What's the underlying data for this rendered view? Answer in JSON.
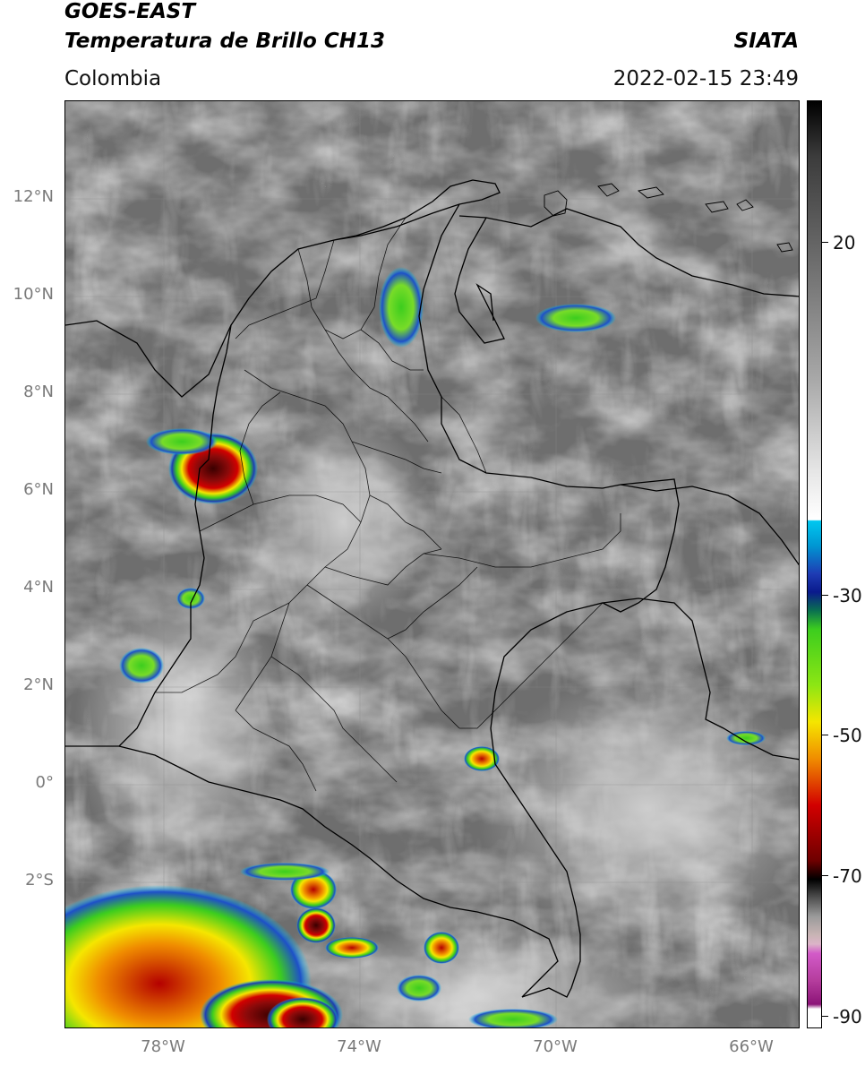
{
  "header": {
    "title_line1": "GOES-EAST",
    "title_line2": "Temperatura de Brillo CH13",
    "brand": "SIATA",
    "region": "Colombia",
    "timestamp": "2022-02-15 23:49"
  },
  "map": {
    "lat_range": [
      -5,
      14
    ],
    "lon_range": [
      -80,
      -65
    ],
    "lat_labels": [
      "12°N",
      "10°N",
      "8°N",
      "6°N",
      "4°N",
      "2°N",
      "0°",
      "2°S"
    ],
    "lon_labels": [
      "78°W",
      "74°W",
      "70°W",
      "66°W"
    ],
    "storms": [
      {
        "name": "Uraba convective cell",
        "lat": 6.4,
        "lon": -76.8,
        "intensity": "extreme"
      },
      {
        "name": "Amazon SW complex",
        "lat": -4.5,
        "lon": -78.5,
        "intensity": "high"
      },
      {
        "name": "Putumayo cell A",
        "lat": -2.1,
        "lon": -75.1,
        "intensity": "high"
      },
      {
        "name": "Putumayo cell B",
        "lat": -2.8,
        "lon": -75.0,
        "intensity": "extreme"
      },
      {
        "name": "Vaupes cell",
        "lat": 0.6,
        "lon": -71.5,
        "intensity": "moderate"
      },
      {
        "name": "Caribbean cell",
        "lat": 9.8,
        "lon": -73.2,
        "intensity": "moderate"
      }
    ]
  },
  "colorbar": {
    "labels": [
      "20",
      "-30",
      "-50",
      "-70",
      "-90"
    ],
    "label_values": [
      20,
      -30,
      -50,
      -70,
      -90
    ],
    "range": [
      -92,
      39
    ],
    "colors": {
      "warm": "#ffffff",
      "cyan": "#00c8f0",
      "blue": "#0a1a8c",
      "green": "#3ccd1e",
      "yellow": "#f5e600",
      "orange": "#f08c00",
      "red": "#d20000",
      "black": "#000000",
      "magenta": "#d25ac8",
      "purple": "#8c1478"
    }
  }
}
